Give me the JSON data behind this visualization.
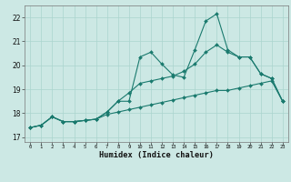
{
  "xlabel": "Humidex (Indice chaleur)",
  "bg_color": "#cce8e4",
  "line_color": "#1a7a6e",
  "grid_color": "#aad4ce",
  "xlim": [
    -0.5,
    23.5
  ],
  "ylim": [
    16.8,
    22.5
  ],
  "yticks": [
    17,
    18,
    19,
    20,
    21,
    22
  ],
  "xticks": [
    0,
    1,
    2,
    3,
    4,
    5,
    6,
    7,
    8,
    9,
    10,
    11,
    12,
    13,
    14,
    15,
    16,
    17,
    18,
    19,
    20,
    21,
    22,
    23
  ],
  "x": [
    0,
    1,
    2,
    3,
    4,
    5,
    6,
    7,
    8,
    9,
    10,
    11,
    12,
    13,
    14,
    15,
    16,
    17,
    18,
    19,
    20,
    21,
    22,
    23
  ],
  "y_top": [
    17.4,
    17.5,
    17.85,
    17.65,
    17.65,
    17.7,
    17.75,
    18.05,
    18.5,
    18.5,
    20.35,
    20.55,
    20.05,
    19.6,
    19.5,
    20.65,
    21.85,
    22.15,
    20.65,
    20.35,
    20.35,
    19.65,
    19.45,
    18.5
  ],
  "y_mid": [
    17.4,
    17.5,
    17.85,
    17.65,
    17.65,
    17.7,
    17.75,
    18.05,
    18.5,
    18.85,
    19.25,
    19.35,
    19.45,
    19.55,
    19.75,
    20.05,
    20.55,
    20.85,
    20.55,
    20.35,
    20.35,
    19.65,
    19.45,
    18.5
  ],
  "y_bot": [
    17.4,
    17.5,
    17.85,
    17.65,
    17.65,
    17.7,
    17.75,
    17.95,
    18.05,
    18.15,
    18.25,
    18.35,
    18.45,
    18.55,
    18.65,
    18.75,
    18.85,
    18.95,
    18.95,
    19.05,
    19.15,
    19.25,
    19.35,
    18.5
  ]
}
